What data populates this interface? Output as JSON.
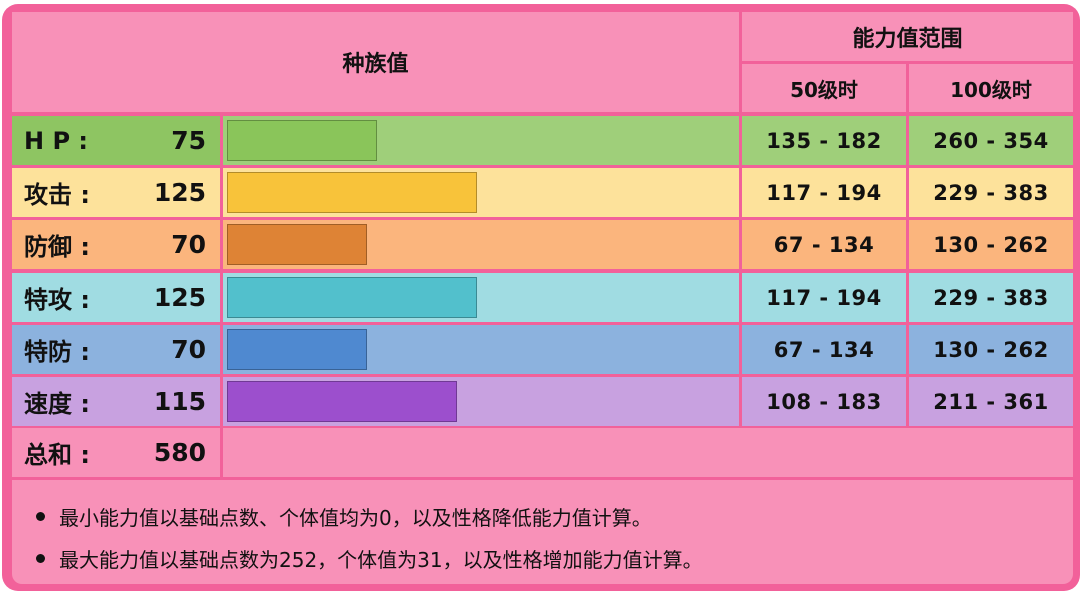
{
  "header": {
    "base_stats_title": "种族值",
    "range_title": "能力值范围",
    "level50_label": "50级时",
    "level100_label": "100级时"
  },
  "stats": [
    {
      "label": "H P :",
      "value": "75",
      "base": 75,
      "lv50": "135 - 182",
      "lv100": "260 - 354",
      "row_color": "#9fcf7a",
      "bar_color": "#8ac55a",
      "label_color": "#8ec562"
    },
    {
      "label": "攻击 :",
      "value": "125",
      "base": 125,
      "lv50": "117 - 194",
      "lv100": "229 - 383",
      "row_color": "#fde29b",
      "bar_color": "#f8c33a",
      "label_color": "#fde29b"
    },
    {
      "label": "防御 :",
      "value": "70",
      "base": 70,
      "lv50": "67 - 134",
      "lv100": "130 - 262",
      "row_color": "#fbb57d",
      "bar_color": "#de8335",
      "label_color": "#fbb57d"
    },
    {
      "label": "特攻 :",
      "value": "125",
      "base": 125,
      "lv50": "117 - 194",
      "lv100": "229 - 383",
      "row_color": "#a0dce2",
      "bar_color": "#52c0cc",
      "label_color": "#a0dce2"
    },
    {
      "label": "特防 :",
      "value": "70",
      "base": 70,
      "lv50": "67 - 134",
      "lv100": "130 - 262",
      "row_color": "#8cb2de",
      "bar_color": "#4f89d0",
      "label_color": "#8cb2de"
    },
    {
      "label": "速度 :",
      "value": "115",
      "base": 115,
      "lv50": "108 - 183",
      "lv100": "211 - 361",
      "row_color": "#c8a1e0",
      "bar_color": "#9c4fcd",
      "label_color": "#c8a1e0"
    }
  ],
  "total": {
    "label": "总和 :",
    "value": "580"
  },
  "notes": [
    "最小能力值以基础点数、个体值均为0，以及性格降低能力值计算。",
    "最大能力值以基础点数为252，个体值为31，以及性格增加能力值计算。"
  ]
}
